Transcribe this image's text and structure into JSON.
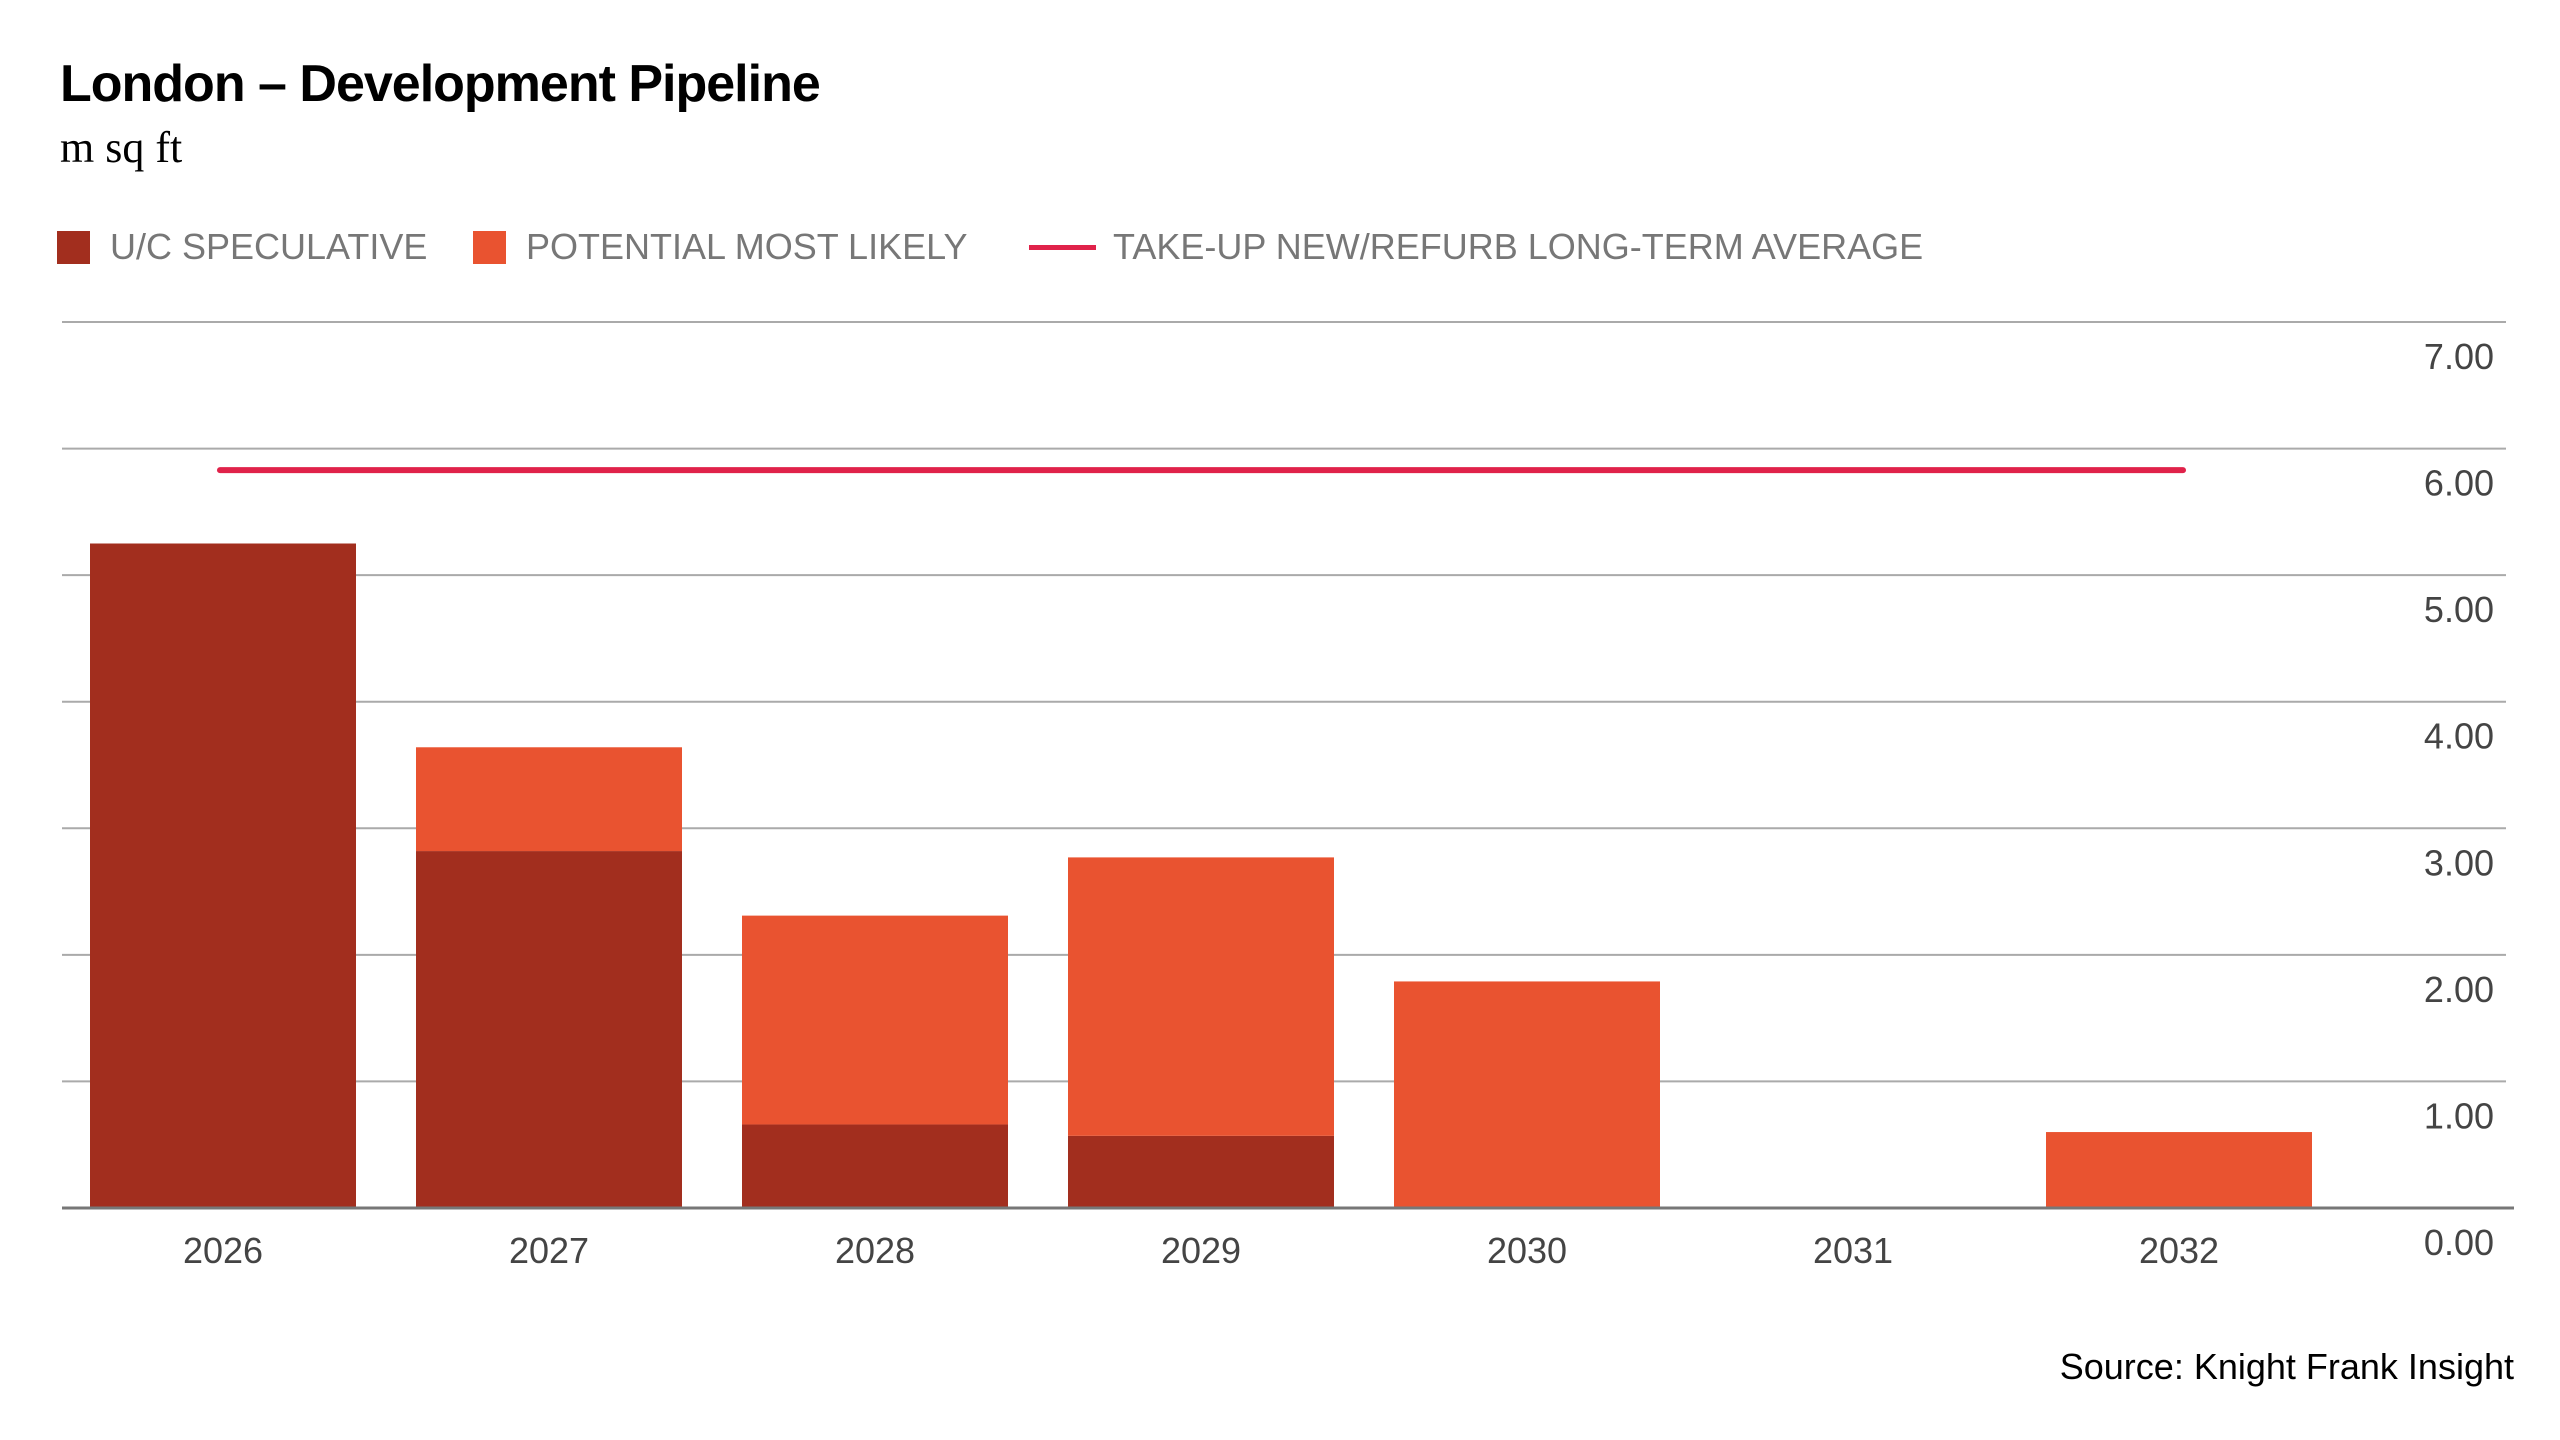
{
  "title": "London – Development Pipeline",
  "subtitle": "m sq ft",
  "source": "Source: Knight Frank Insight",
  "chart_data": {
    "type": "bar",
    "stacked": true,
    "title": "London – Development Pipeline",
    "ylabel": "m sq ft",
    "categories": [
      "2026",
      "2027",
      "2028",
      "2029",
      "2030",
      "2031",
      "2032"
    ],
    "series": [
      {
        "name": "U/C SPECULATIVE",
        "color": "#A22E1E",
        "values": [
          5.25,
          2.82,
          0.66,
          0.57,
          0,
          0,
          0
        ]
      },
      {
        "name": "POTENTIAL MOST LIKELY",
        "color": "#E95330",
        "values": [
          0,
          0.82,
          1.65,
          2.2,
          1.79,
          0,
          0.6
        ]
      }
    ],
    "reference_line": {
      "name": "TAKE-UP NEW/REFURB LONG-TERM AVERAGE",
      "color": "#E0224A",
      "value": 5.83
    },
    "ylim": [
      0,
      7
    ],
    "yticks": [
      "0.00",
      "1.00",
      "2.00",
      "3.00",
      "4.00",
      "5.00",
      "6.00",
      "7.00"
    ],
    "y_axis_position": "right",
    "grid": true,
    "legend": "top-left"
  }
}
